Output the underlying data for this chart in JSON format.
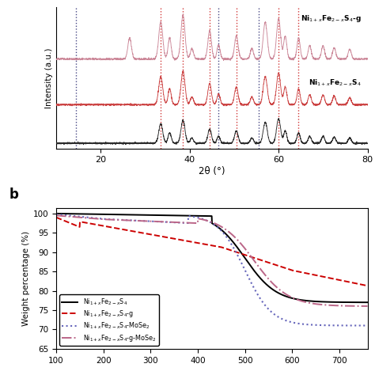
{
  "panel_a": {
    "xlabel": "2θ (°)",
    "ylabel": "Intensity (a.u.)",
    "xlim": [
      10,
      80
    ],
    "xrd_dashed_red": [
      33.5,
      38.5,
      44.5,
      50.5,
      60.0,
      64.5
    ],
    "xrd_dashed_blue": [
      14.5,
      46.5,
      55.5
    ],
    "label_top": "Ni$_{1+x}$Fe$_{2-x}$S$_4$-g",
    "label_bottom": "Ni$_{1+x}$Fe$_{2-x}$S$_4$",
    "xticks": [
      20,
      40,
      60,
      80
    ]
  },
  "panel_b": {
    "xlabel": "",
    "ylabel": "Weight percentage (%)",
    "xlim": [
      100,
      760
    ],
    "ylim": [
      65,
      101.5
    ],
    "yticks": [
      65,
      70,
      75,
      80,
      85,
      90,
      95,
      100
    ],
    "xticks": [
      100,
      200,
      300,
      400,
      500,
      600,
      700
    ],
    "legend": [
      "Ni$_{1+x}$Fe$_{2-x}$S$_4$",
      "Ni$_{1+x}$Fe$_{2-x}$S$_4$-g",
      "Ni$_{1+x}$Fe$_{2-x}$S$_4$-MoSe$_2$",
      "Ni$_{1+x}$Fe$_{2-x}$S$_4$-g-MoSe$_2$"
    ],
    "line_colors": [
      "black",
      "#cc0000",
      "#6666bb",
      "#bb6688"
    ]
  }
}
